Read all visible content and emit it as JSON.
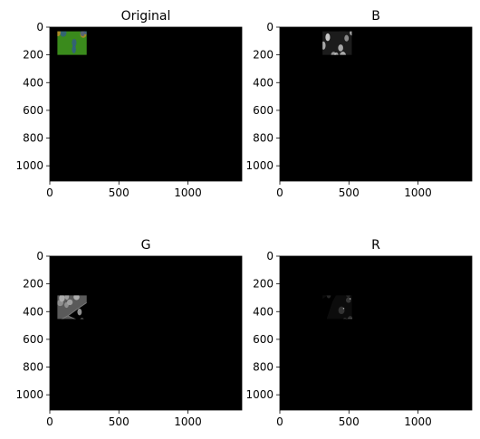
{
  "figure": {
    "panels": [
      {
        "title": "Original",
        "channel": "rgb",
        "x_ticks": [
          "0",
          "500",
          "1000"
        ],
        "y_ticks": [
          "0",
          "200",
          "400",
          "600",
          "800",
          "1000"
        ]
      },
      {
        "title": "B",
        "channel": "gray",
        "x_ticks": [
          "0",
          "500",
          "1000"
        ],
        "y_ticks": [
          "0",
          "200",
          "400",
          "600",
          "800",
          "1000"
        ]
      },
      {
        "title": "G",
        "channel": "gray",
        "x_ticks": [
          "0",
          "500",
          "1000"
        ],
        "y_ticks": [
          "0",
          "200",
          "400",
          "600",
          "800",
          "1000"
        ]
      },
      {
        "title": "R",
        "channel": "gray",
        "x_ticks": [
          "0",
          "500",
          "1000"
        ],
        "y_ticks": [
          "0",
          "200",
          "400",
          "600",
          "800",
          "1000"
        ]
      }
    ],
    "colors": {
      "background": "#000000",
      "cytoplasm_green": "#3a8a1c",
      "nucleus_orange": "#c08a28",
      "nucleus_blue": "#3050a0"
    }
  }
}
